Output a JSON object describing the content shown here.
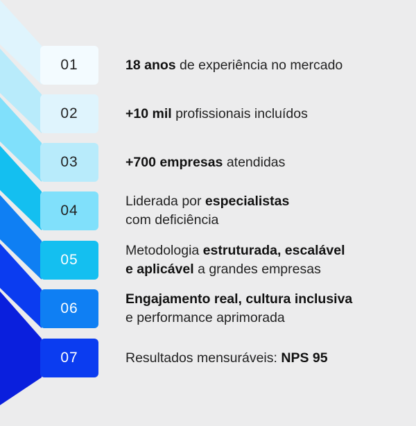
{
  "colors": {
    "background": "#ececed",
    "ribbons": [
      "#dff4fd",
      "#b8ebfb",
      "#80e0fb",
      "#14bff0",
      "#0f7ff3",
      "#0b3cf0",
      "#0a1fdd"
    ],
    "boxes": [
      "#f3fbff",
      "#dff4fd",
      "#b8ebfb",
      "#80e0fb",
      "#14bff0",
      "#0f7ff3",
      "#0b3cf0"
    ],
    "box_text": [
      "#222222",
      "#222222",
      "#222222",
      "#222222",
      "#ffffff",
      "#ffffff",
      "#ffffff"
    ]
  },
  "items": [
    {
      "number": "01",
      "lines": [
        [
          {
            "text": "18 anos",
            "bold": true
          },
          {
            "text": " de experiência no mercado",
            "bold": false
          }
        ]
      ]
    },
    {
      "number": "02",
      "lines": [
        [
          {
            "text": "+10 mil",
            "bold": true
          },
          {
            "text": " profissionais incluídos",
            "bold": false
          }
        ]
      ]
    },
    {
      "number": "03",
      "lines": [
        [
          {
            "text": "+700 empresas",
            "bold": true
          },
          {
            "text": " atendidas",
            "bold": false
          }
        ]
      ]
    },
    {
      "number": "04",
      "lines": [
        [
          {
            "text": "Liderada por ",
            "bold": false
          },
          {
            "text": "especialistas",
            "bold": true
          }
        ],
        [
          {
            "text": "com deficiência",
            "bold": false
          }
        ]
      ]
    },
    {
      "number": "05",
      "lines": [
        [
          {
            "text": "Metodologia ",
            "bold": false
          },
          {
            "text": "estruturada, escalável",
            "bold": true
          }
        ],
        [
          {
            "text": "e aplicável",
            "bold": true
          },
          {
            "text": " a grandes empresas",
            "bold": false
          }
        ]
      ]
    },
    {
      "number": "06",
      "lines": [
        [
          {
            "text": "Engajamento real, cultura inclusiva",
            "bold": true
          }
        ],
        [
          {
            "text": "e performance aprimorada",
            "bold": false
          }
        ]
      ]
    },
    {
      "number": "07",
      "lines": [
        [
          {
            "text": "Resultados mensuráveis: ",
            "bold": false
          },
          {
            "text": "NPS 95",
            "bold": true
          }
        ]
      ]
    }
  ]
}
